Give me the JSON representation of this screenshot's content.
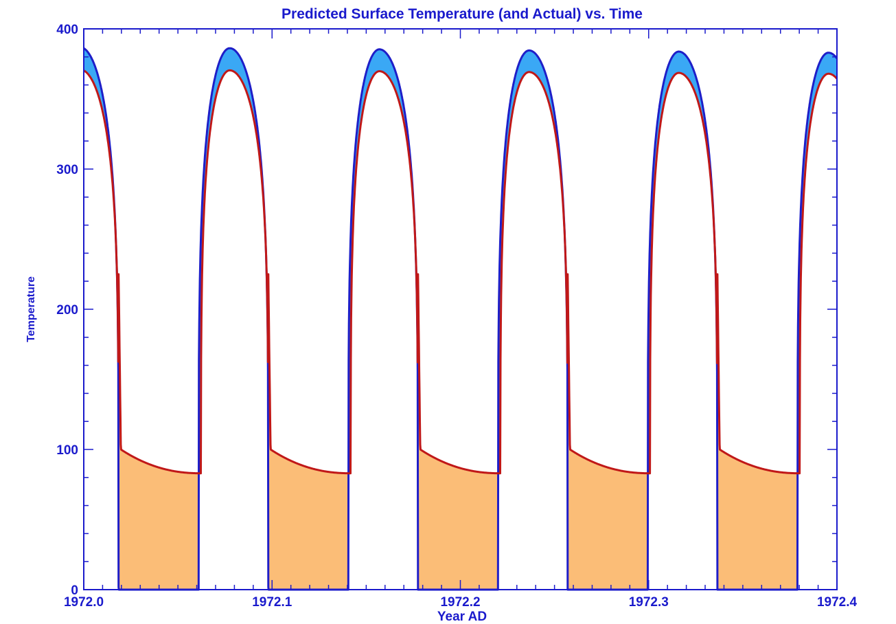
{
  "chart_data": {
    "type": "line",
    "title": "Predicted Surface Temperature (and Actual) vs. Time",
    "xlabel": "Year AD",
    "ylabel": "Temperature",
    "xlim": [
      1972.0,
      1972.4
    ],
    "ylim": [
      0,
      400
    ],
    "x_ticks": [
      "1972.0",
      "1972.1",
      "1972.2",
      "1972.3",
      "1972.4"
    ],
    "y_ticks": [
      "0",
      "100",
      "200",
      "300",
      "400"
    ],
    "grid": false,
    "cycle_period_years": 0.0795,
    "cycle_start_years": [
      1971.998,
      1972.0775,
      1972.157,
      1972.2365,
      1972.316,
      1972.3955
    ],
    "series": [
      {
        "role": "predicted",
        "color": "#1e1ec8",
        "day_peak_max": 387,
        "day_peak_min": 383,
        "night_value": 0,
        "sunrise_offset_years": -0.0165,
        "sunset_offset_years": 0.0205
      },
      {
        "role": "actual",
        "color": "#c01818",
        "day_peak_max": 371,
        "day_peak_min": 368,
        "sunset_step_value": 225,
        "post_sunset_value": 100,
        "pre_sunrise_value": 83
      }
    ],
    "fill_colors": {
      "predicted_above_actual": "#3aa8f5",
      "actual_above_predicted": "#fbbd77"
    }
  }
}
